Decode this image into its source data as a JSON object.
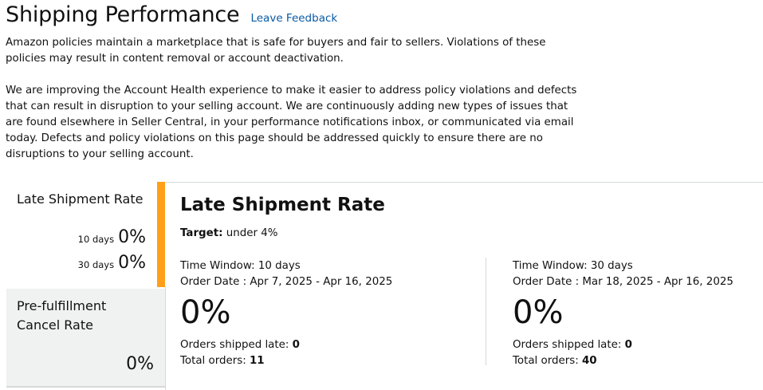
{
  "header": {
    "title": "Shipping Performance",
    "feedback_link": "Leave Feedback"
  },
  "intro": {
    "paragraph1": "Amazon policies maintain a marketplace that is safe for buyers and fair to sellers. Violations of these policies may result in content removal or account deactivation.",
    "paragraph2": "We are improving the Account Health experience to make it easier to address policy violations and defects that can result in disruption to your selling account. We are continuously adding new types of issues that are found elsewhere in Seller Central, in your performance notifications inbox, or communicated via email today. Defects and policy violations on this page should be addressed quickly to ensure there are no disruptions to your selling account."
  },
  "sidebar": {
    "tabs": [
      {
        "title": "Late Shipment Rate",
        "rows": [
          {
            "label": "10 days",
            "value": "0%"
          },
          {
            "label": "30 days",
            "value": "0%"
          }
        ],
        "accent_color": "#ff9f1a",
        "selected": true
      },
      {
        "title": "Pre-fulfillment Cancel Rate",
        "value": "0%",
        "selected": false
      }
    ]
  },
  "panel": {
    "title": "Late Shipment Rate",
    "target_label": "Target:",
    "target_value": " under 4%",
    "windows": [
      {
        "time_window": "Time Window: 10 days",
        "order_date": "Order Date : Apr 7, 2025 - Apr 16, 2025",
        "rate": "0%",
        "shipped_late_label": "Orders shipped late: ",
        "shipped_late_value": "0",
        "total_label": "Total orders: ",
        "total_value": "11"
      },
      {
        "time_window": "Time Window: 30 days",
        "order_date": "Order Date : Mar 18, 2025 - Apr 16, 2025",
        "rate": "0%",
        "shipped_late_label": "Orders shipped late: ",
        "shipped_late_value": "0",
        "total_label": "Total orders: ",
        "total_value": "40"
      }
    ]
  },
  "colors": {
    "link": "#0a5aa5",
    "accent": "#ff9f1a",
    "inactive_tab_bg": "#f0f1f1",
    "divider": "#d5d9d9"
  }
}
